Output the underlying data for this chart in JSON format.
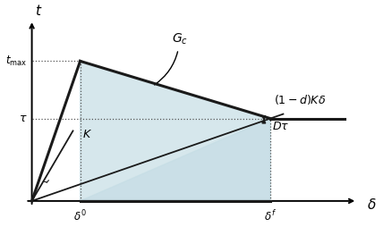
{
  "fig_width": 4.38,
  "fig_height": 2.54,
  "dpi": 100,
  "background_color": "#ffffff",
  "delta0": 0.15,
  "deltaf": 0.74,
  "t_max": 0.78,
  "tau": 0.46,
  "x_max": 0.95,
  "y_max": 0.95,
  "fill_color": "#c5dde5",
  "fill_alpha": 0.7,
  "line_color": "#1a1a1a",
  "thick_lw": 2.2,
  "thin_lw": 1.3,
  "dashed_color": "#555555",
  "dashed_lw": 0.9,
  "label_t": "$t$",
  "label_delta": "$\\delta$",
  "label_tmax": "$t_{\\mathrm{max}}$",
  "label_tau": "$\\tau$",
  "label_delta0": "$\\delta^0$",
  "label_deltaf": "$\\delta^f$",
  "label_Gc": "$G_c$",
  "label_K": "$K$",
  "label_Dtau": "$D\\tau$",
  "label_1dKdelta": "$(1-d)K\\delta$",
  "arrow_color": "#1a1a1a",
  "arrow_lw": 1.2
}
